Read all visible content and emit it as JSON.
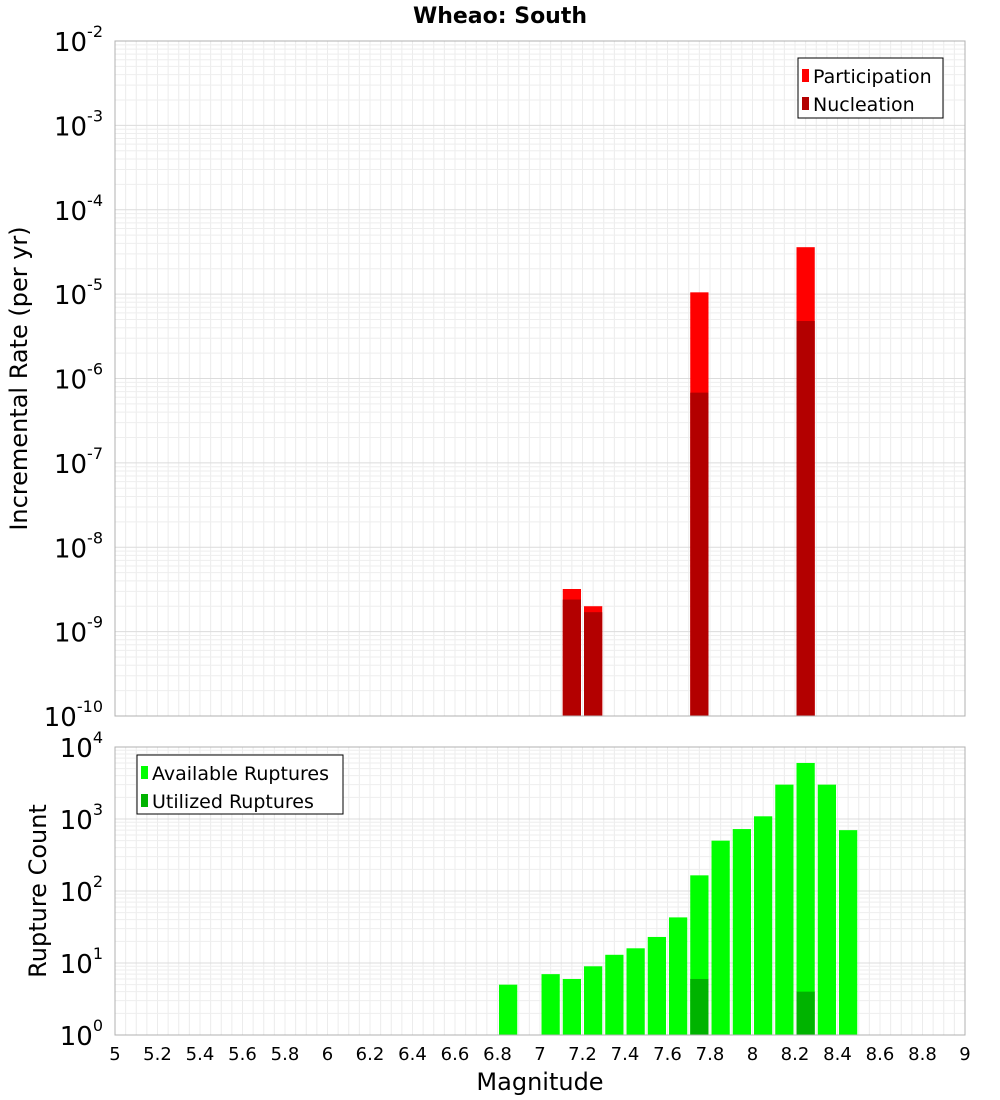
{
  "title": "Wheao: South",
  "colors": {
    "participation": "#ff0000",
    "nucleation": "#b30000",
    "available": "#00ff00",
    "utilized": "#00b300"
  },
  "chart_data": [
    {
      "type": "bar",
      "ylabel": "Incremental Rate (per yr)",
      "xlabel": "",
      "x_range": [
        5,
        9
      ],
      "y_scale": "log",
      "y_exponents": [
        -10,
        -9,
        -8,
        -7,
        -6,
        -5,
        -4,
        -3,
        -2
      ],
      "legend": "top-right",
      "grid": true,
      "series": [
        {
          "name": "Participation",
          "x": [
            7.15,
            7.25,
            7.75,
            8.25
          ],
          "values": [
            3.2e-09,
            2e-09,
            1.05e-05,
            3.6e-05
          ]
        },
        {
          "name": "Nucleation",
          "x": [
            7.15,
            7.25,
            7.75,
            8.25
          ],
          "values": [
            2.4e-09,
            1.7e-09,
            6.8e-07,
            4.8e-06
          ]
        }
      ]
    },
    {
      "type": "bar",
      "ylabel": "Rupture Count",
      "xlabel": "Magnitude",
      "x_range": [
        5,
        9
      ],
      "x_ticks": [
        "5",
        "5.2",
        "5.4",
        "5.6",
        "5.8",
        "6",
        "6.2",
        "6.4",
        "6.6",
        "6.8",
        "7",
        "7.2",
        "7.4",
        "7.6",
        "7.8",
        "8",
        "8.2",
        "8.4",
        "8.6",
        "8.8",
        "9"
      ],
      "y_scale": "log",
      "y_exponents": [
        0,
        1,
        2,
        3,
        4
      ],
      "legend": "top-left",
      "grid": true,
      "series": [
        {
          "name": "Available Ruptures",
          "x": [
            6.85,
            7.05,
            7.15,
            7.25,
            7.35,
            7.45,
            7.55,
            7.65,
            7.75,
            7.85,
            7.95,
            8.05,
            8.15,
            8.25,
            8.35,
            8.45
          ],
          "values": [
            5,
            7,
            6,
            9,
            13,
            16,
            23,
            43,
            165,
            500,
            725,
            1090,
            3000,
            6000,
            3000,
            700
          ]
        },
        {
          "name": "Utilized Ruptures",
          "x": [
            7.15,
            7.25,
            7.35,
            7.75,
            8.25
          ],
          "values": [
            1,
            1,
            1,
            6,
            4
          ]
        }
      ]
    }
  ]
}
